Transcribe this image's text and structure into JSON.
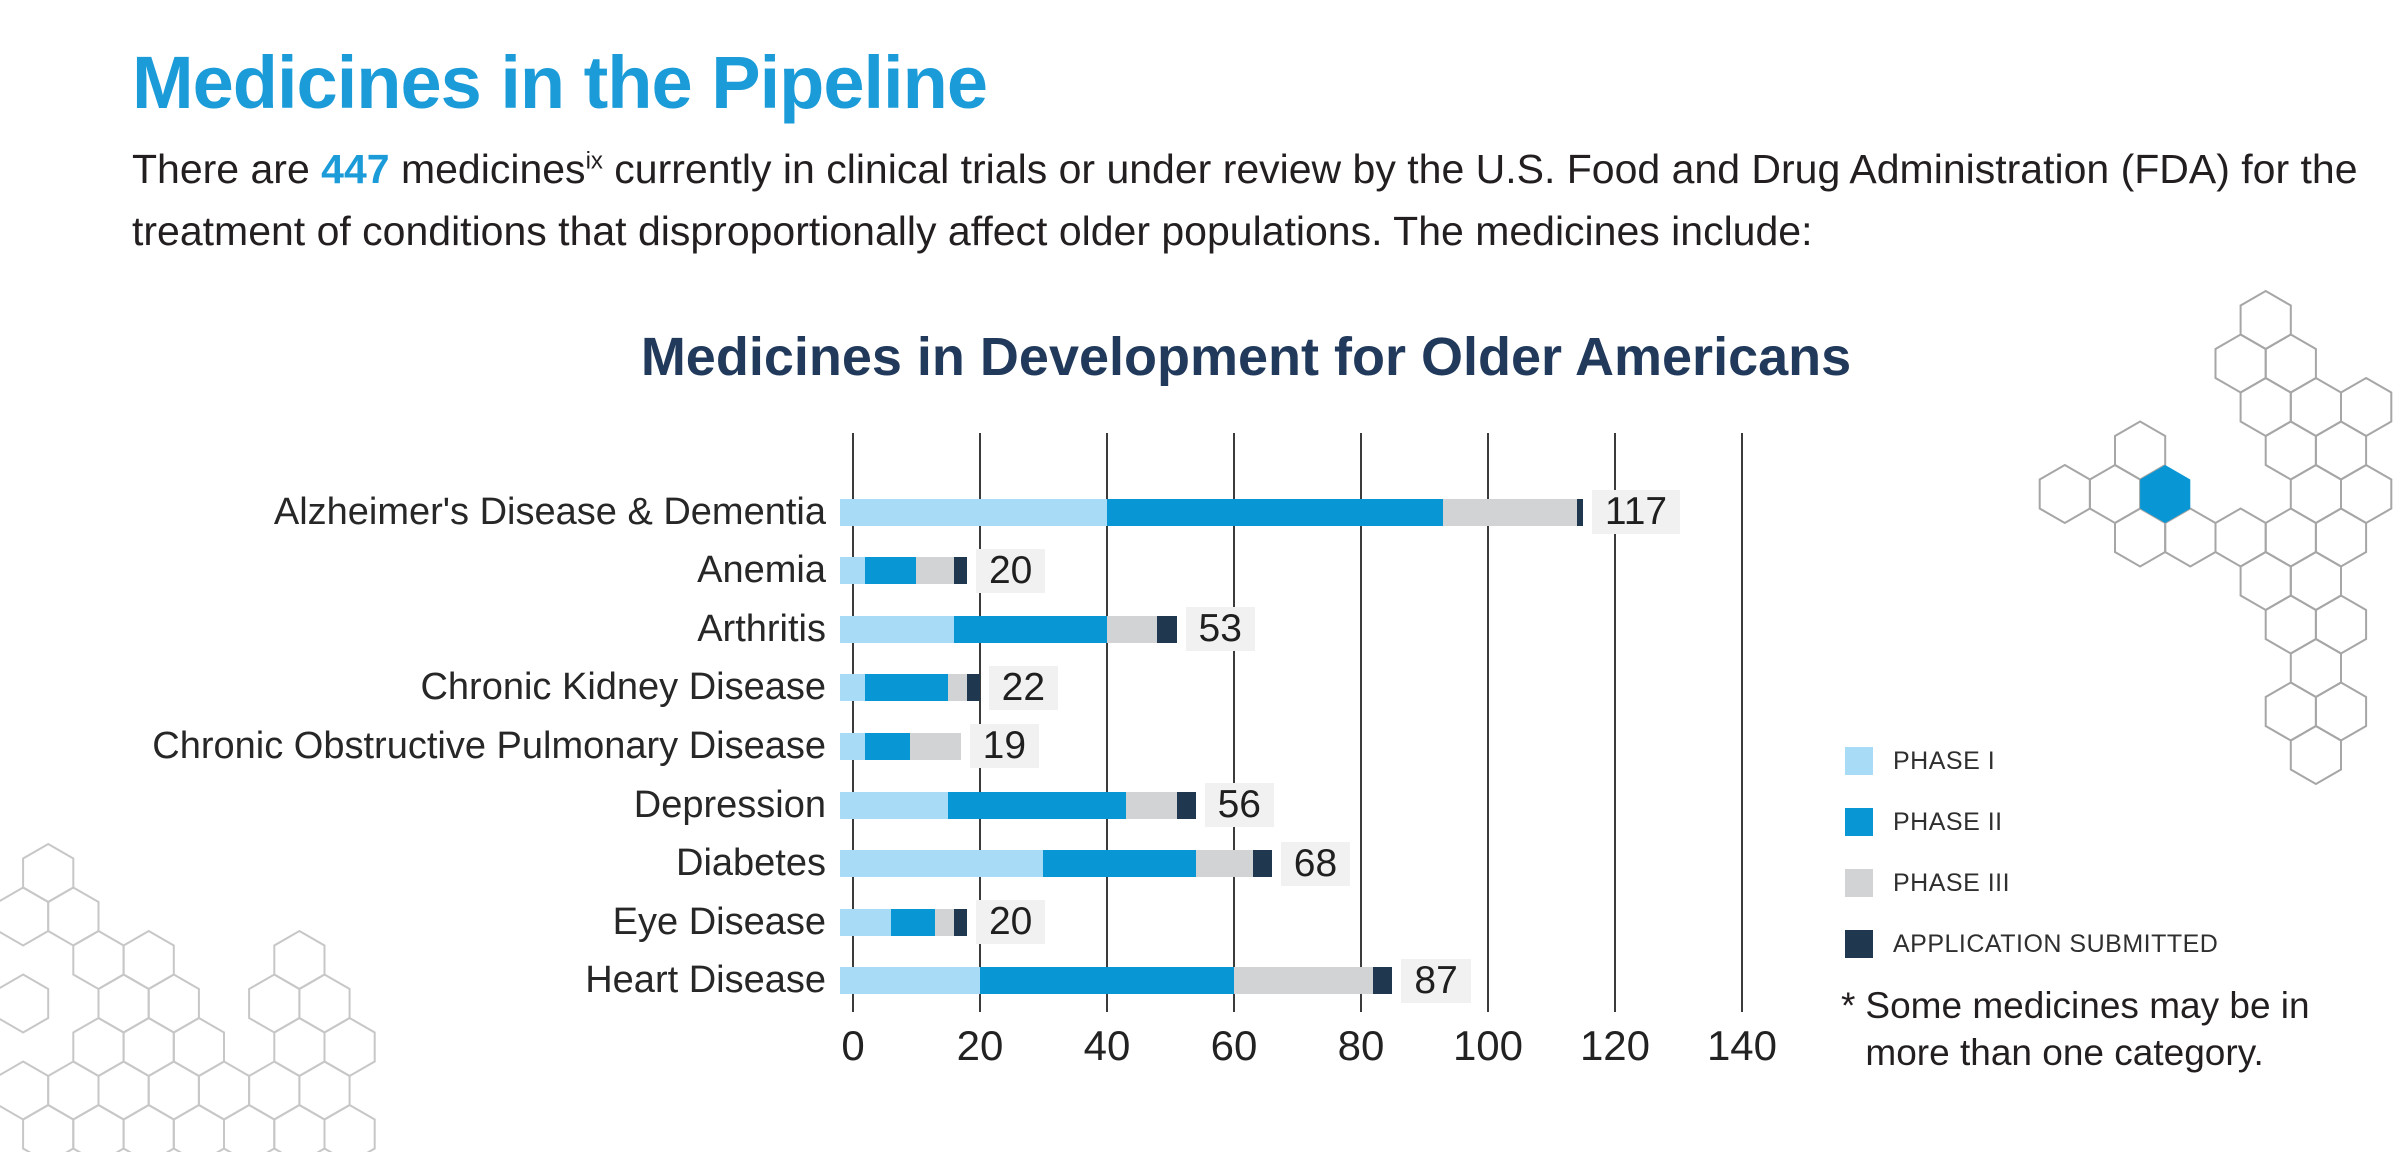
{
  "header": {
    "title": "Medicines in the Pipeline",
    "intro": {
      "prefix": "There are ",
      "count": "447",
      "after_count": " medicines",
      "superscript": "ix",
      "line1_rest": " currently in clinical trials or under review by the U.S. Food and Drug Administration (FDA) for the",
      "line2": "treatment of conditions that disproportionally affect older populations. The medicines include:"
    }
  },
  "colors": {
    "accent_blue": "#1B9CD9",
    "phase1": "#A7DBF6",
    "phase2": "#0897D4",
    "phase3": "#D1D3D4",
    "application_submitted": "#20384F",
    "navy_title": "#21395B",
    "text": "#231F20",
    "gridline": "#3B3B3B",
    "value_chip_bg": "#F1F1F1"
  },
  "chart_data": {
    "type": "bar",
    "orientation": "horizontal",
    "stacked": true,
    "title": "Medicines in Development for Older Americans",
    "categories": [
      "Alzheimer's Disease & Dementia",
      "Anemia",
      "Arthritis",
      "Chronic Kidney Disease",
      "Chronic Obstructive Pulmonary Disease",
      "Depression",
      "Diabetes",
      "Eye Disease",
      "Heart Disease"
    ],
    "series": [
      {
        "name": "PHASE I",
        "color": "#A7DBF6",
        "values": [
          42,
          4,
          18,
          4,
          4,
          17,
          32,
          8,
          22
        ]
      },
      {
        "name": "PHASE II",
        "color": "#0897D4",
        "values": [
          53,
          8,
          24,
          13,
          7,
          28,
          24,
          7,
          40
        ]
      },
      {
        "name": "PHASE III",
        "color": "#D1D3D4",
        "values": [
          21,
          6,
          8,
          3,
          8,
          8,
          9,
          3,
          22
        ]
      },
      {
        "name": "APPLICATION SUBMITTED",
        "color": "#20384F",
        "values": [
          1,
          2,
          3,
          2,
          0,
          3,
          3,
          2,
          3
        ]
      }
    ],
    "totals": [
      117,
      20,
      53,
      22,
      19,
      56,
      68,
      20,
      87
    ],
    "x_ticks": [
      0,
      20,
      40,
      60,
      80,
      100,
      120,
      140
    ],
    "xlim": [
      0,
      140
    ],
    "grid": true,
    "legend_position": "right"
  },
  "footnote": {
    "marker": "*",
    "lines": [
      "Some medicines may be in",
      "more than one category."
    ]
  }
}
